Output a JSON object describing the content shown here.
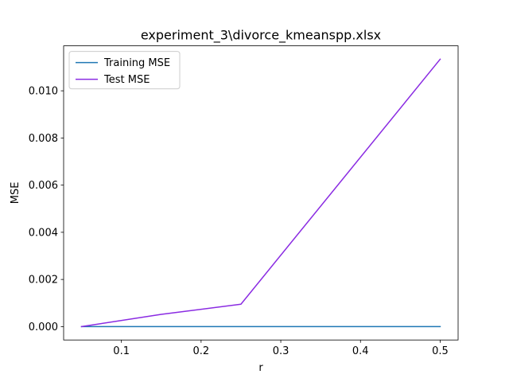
{
  "chart_data": {
    "type": "line",
    "title": "experiment_3\\divorce_kmeanspp.xlsx",
    "xlabel": "r",
    "ylabel": "MSE",
    "xlim": [
      0.0275,
      0.5225
    ],
    "ylim": [
      -0.000567,
      0.011907
    ],
    "xticks": [
      0.1,
      0.2,
      0.3,
      0.4,
      0.5
    ],
    "xtick_labels": [
      "0.1",
      "0.2",
      "0.3",
      "0.4",
      "0.5"
    ],
    "yticks": [
      0.0,
      0.002,
      0.004,
      0.006,
      0.008,
      0.01
    ],
    "ytick_labels": [
      "0.000",
      "0.002",
      "0.004",
      "0.006",
      "0.008",
      "0.010"
    ],
    "x": [
      0.05,
      0.15,
      0.25,
      0.5
    ],
    "series": [
      {
        "name": "Training MSE",
        "color": "#1f77b4",
        "values": [
          0.0,
          0.0,
          0.0,
          0.0
        ]
      },
      {
        "name": "Test MSE",
        "color": "#8a2be2",
        "values": [
          0.0,
          0.00052,
          0.00095,
          0.01134
        ]
      }
    ],
    "legend_location": "upper left",
    "grid": false
  }
}
